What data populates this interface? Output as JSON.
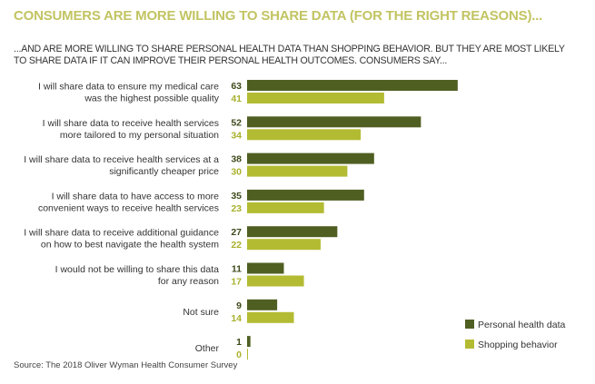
{
  "chart_data": {
    "type": "bar",
    "orientation": "horizontal",
    "title": "CONSUMERS ARE MORE WILLING TO SHARE DATA (FOR THE RIGHT REASONS)...",
    "subtitle": "...AND ARE MORE WILLING TO SHARE PERSONAL HEALTH DATA THAN SHOPPING BEHAVIOR. BUT THEY ARE MOST LIKELY TO SHARE DATA IF IT CAN IMPROVE THEIR PERSONAL HEALTH OUTCOMES. CONSUMERS SAY...",
    "categories": [
      [
        "I will share data to ensure my medical care",
        "was the highest possible quality"
      ],
      [
        "I will share data to receive health services",
        "more tailored to my personal situation"
      ],
      [
        "I will share data to receive health services at a",
        "significantly cheaper price"
      ],
      [
        "I will share data to have access to more",
        "convenient ways to receive health services"
      ],
      [
        "I will share data to receive additional guidance",
        "on how to best navigate the health system"
      ],
      [
        "I would not be willing to share this data",
        "for any reason"
      ],
      [
        "Not sure"
      ],
      [
        "Other"
      ]
    ],
    "series": [
      {
        "name": "Personal health data",
        "color": "#4f5f22",
        "values": [
          63,
          52,
          38,
          35,
          27,
          11,
          9,
          1
        ]
      },
      {
        "name": "Shopping behavior",
        "color": "#b3bb33",
        "values": [
          41,
          34,
          30,
          23,
          22,
          17,
          14,
          0
        ]
      }
    ],
    "xlabel": "",
    "ylabel": "",
    "xlim": [
      0,
      63
    ],
    "grid": false,
    "legend": "bottom-right",
    "source": "Source: The 2018 Oliver Wyman Health Consumer Survey"
  }
}
